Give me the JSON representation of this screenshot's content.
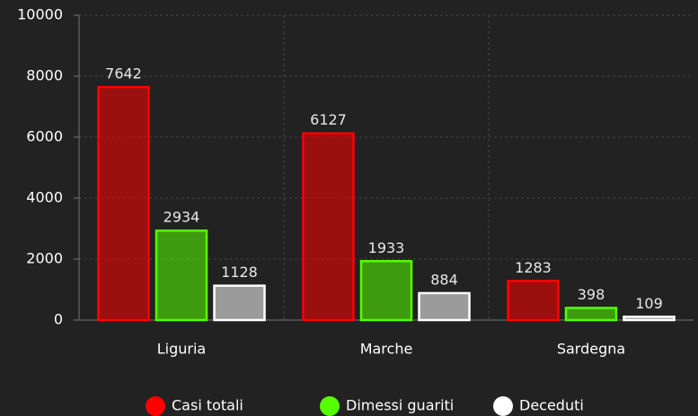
{
  "chart_data": {
    "type": "bar",
    "categories": [
      "Liguria",
      "Marche",
      "Sardegna"
    ],
    "series": [
      {
        "name": "Casi totali",
        "color": "#ff0000",
        "values": [
          7642,
          6127,
          1283
        ]
      },
      {
        "name": "Dimessi guariti",
        "color": "#55ff00",
        "values": [
          2934,
          1933,
          398
        ]
      },
      {
        "name": "Deceduti",
        "color": "#ffffff",
        "values": [
          1128,
          884,
          109
        ]
      }
    ],
    "ylim": [
      0,
      10000
    ],
    "yticks": [
      0,
      2000,
      4000,
      6000,
      8000,
      10000
    ],
    "grid": true,
    "legend": "bottom"
  }
}
